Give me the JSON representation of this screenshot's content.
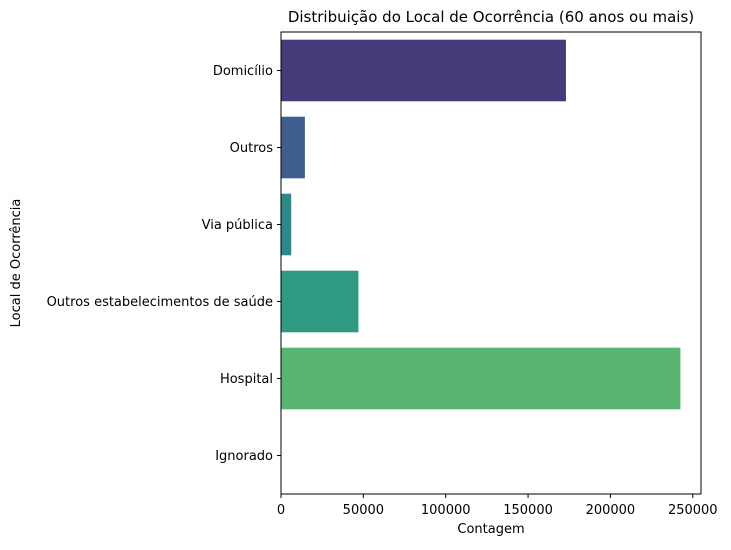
{
  "chart_data": {
    "type": "bar",
    "orientation": "horizontal",
    "title": "Distribuição do Local de Ocorrência (60 anos ou mais)",
    "xlabel": "Contagem",
    "ylabel": "Local de Ocorrência",
    "categories": [
      "Domicílio",
      "Outros",
      "Via pública",
      "Outros estabelecimentos de saúde",
      "Hospital",
      "Ignorado"
    ],
    "values": [
      173000,
      14500,
      6200,
      47000,
      242500,
      0
    ],
    "colors": [
      "#463a7a",
      "#3e5f8d",
      "#2e8a8a",
      "#2f9a82",
      "#5ab472",
      "#8fd35c"
    ],
    "xlim": [
      0,
      255000
    ],
    "xticks": [
      0,
      50000,
      100000,
      150000,
      200000,
      250000
    ],
    "xtick_labels": [
      "0",
      "50000",
      "100000",
      "150000",
      "200000",
      "250000"
    ],
    "grid": false,
    "legend": false
  }
}
